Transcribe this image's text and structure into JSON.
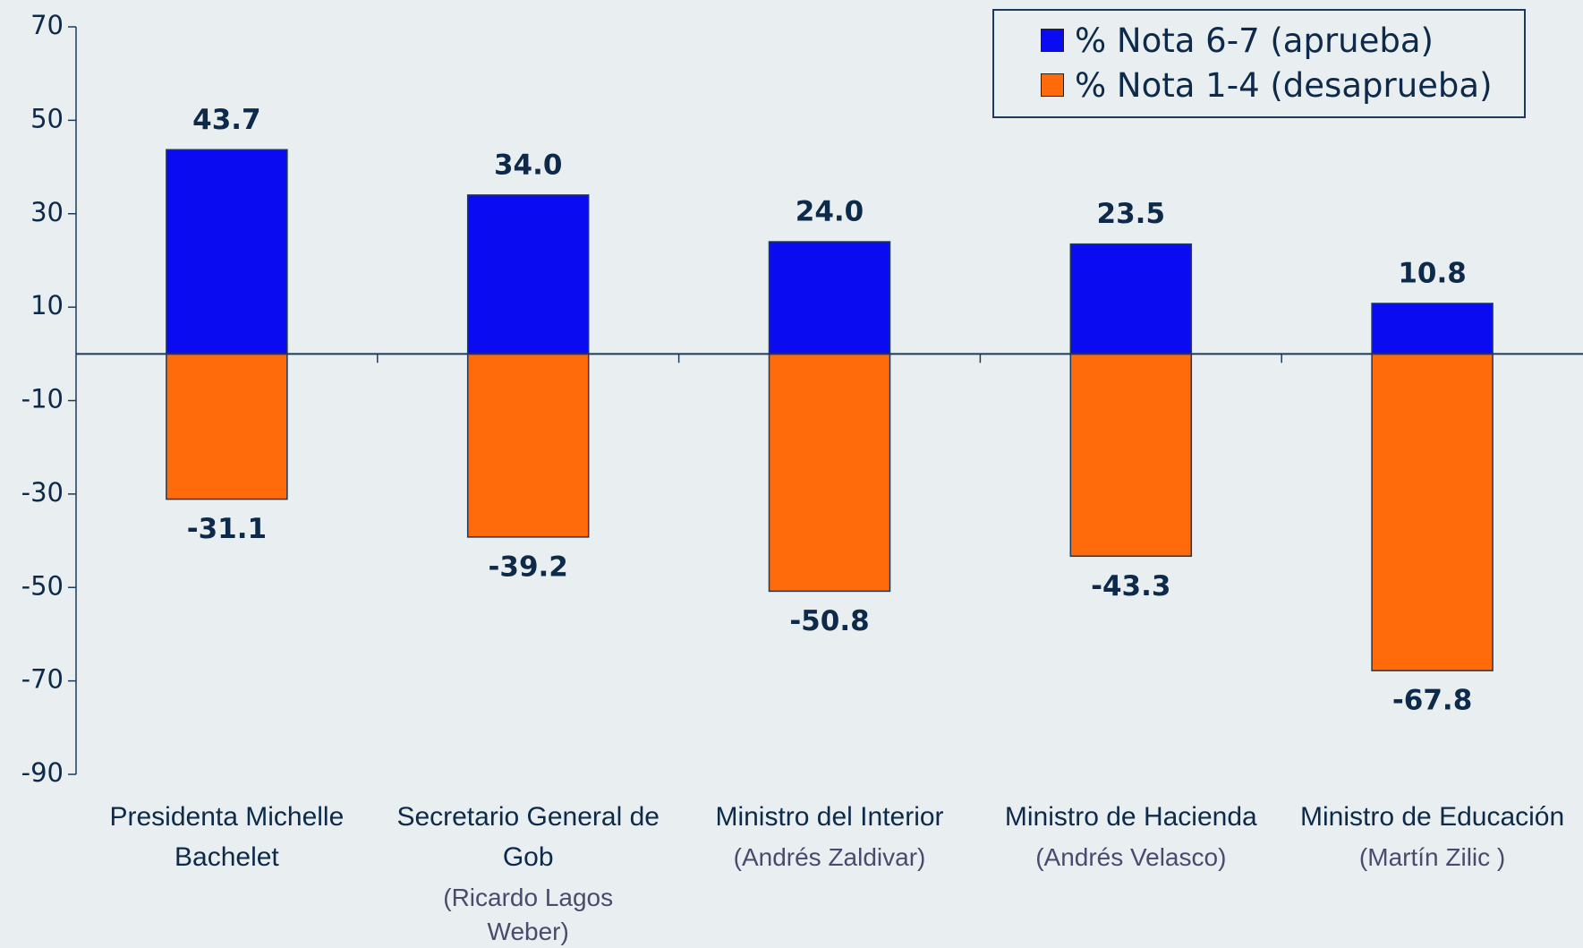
{
  "chart_data": {
    "type": "bar",
    "categories": [
      "Presidenta Michelle Bachelet",
      "Secretario General de Gob",
      "Ministro del Interior",
      "Ministro de Hacienda",
      "Ministro de Educación"
    ],
    "category_notes": [
      null,
      "(Ricardo Lagos Weber)",
      "(Andrés Zaldivar)",
      "(Andrés Velasco)",
      "(Martín Zilic )"
    ],
    "series": [
      {
        "name": "% Nota 6-7 (aprueba)",
        "color": "#0b0bf2",
        "values": [
          43.7,
          34.0,
          24.0,
          23.5,
          10.8
        ],
        "value_labels": [
          "43.7",
          "34.0",
          "24.0",
          "23.5",
          "10.8"
        ]
      },
      {
        "name": "% Nota 1-4 (desaprueba)",
        "color": "#ff6a0a",
        "values": [
          -31.1,
          -39.2,
          -50.8,
          -43.3,
          -67.8
        ]
      }
    ],
    "ylim": [
      -90,
      70
    ],
    "yticks": [
      -90,
      -70,
      -50,
      -30,
      -10,
      10,
      30,
      50,
      70
    ],
    "legend": "top-right"
  }
}
